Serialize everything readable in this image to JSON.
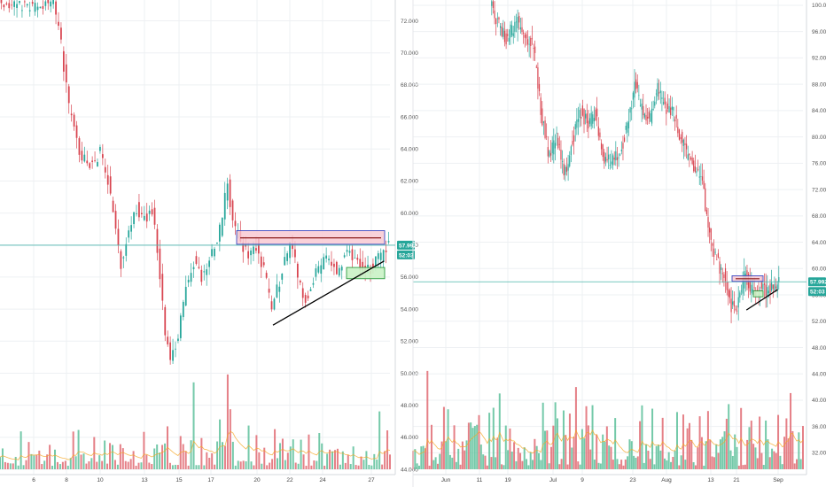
{
  "colors": {
    "up": "#26a69a",
    "down": "#d8444f",
    "up_vol": "#5cbf9a",
    "down_vol": "#e06a72",
    "grid": "#eef0f3",
    "current_line": "#4db6ac",
    "resistance_fill": "#f7c6cf",
    "resistance_border": "#3b49c4",
    "support_fill": "#c9f2c5",
    "support_border": "#2e9c42",
    "trend_line": "#000000",
    "ma_line": "#f5a623"
  },
  "chart_data": [
    {
      "type": "candlestick",
      "title": "",
      "x_ticks": [
        "6",
        "8",
        "10",
        "13",
        "15",
        "17",
        "20",
        "22",
        "24",
        "27"
      ],
      "y_ticks": [
        "72.000",
        "70.000",
        "68.000",
        "66.000",
        "64.000",
        "62.000",
        "60.000",
        "58.000",
        "56.000",
        "54.000",
        "52.000",
        "50.000",
        "48.000",
        "46.000",
        "44.000"
      ],
      "volume_ticks": [
        "48.000",
        "46.000",
        "44.000"
      ],
      "ylim": [
        44,
        73.3
      ],
      "grid": true,
      "price_badges": [
        {
          "text": "57.992",
          "value": 57.992,
          "color": "#26a69a"
        },
        {
          "text": "52:03",
          "value": 56.9,
          "color": "#26a69a"
        }
      ],
      "price_path": [
        {
          "t": 0,
          "v": 73.2
        },
        {
          "t": 0.05,
          "v": 73.0
        },
        {
          "t": 0.1,
          "v": 72.9
        },
        {
          "t": 0.14,
          "v": 73.2
        },
        {
          "t": 0.16,
          "v": 70.5
        },
        {
          "t": 0.18,
          "v": 66.5
        },
        {
          "t": 0.21,
          "v": 63.6
        },
        {
          "t": 0.24,
          "v": 63.0
        },
        {
          "t": 0.26,
          "v": 63.8
        },
        {
          "t": 0.28,
          "v": 62.0
        },
        {
          "t": 0.3,
          "v": 58.8
        },
        {
          "t": 0.315,
          "v": 56.6
        },
        {
          "t": 0.33,
          "v": 58.8
        },
        {
          "t": 0.35,
          "v": 60.5
        },
        {
          "t": 0.37,
          "v": 59.5
        },
        {
          "t": 0.395,
          "v": 60.2
        },
        {
          "t": 0.41,
          "v": 57.2
        },
        {
          "t": 0.425,
          "v": 52.6
        },
        {
          "t": 0.44,
          "v": 50.8
        },
        {
          "t": 0.46,
          "v": 52.2
        },
        {
          "t": 0.48,
          "v": 55.3
        },
        {
          "t": 0.5,
          "v": 57.0
        },
        {
          "t": 0.52,
          "v": 56.0
        },
        {
          "t": 0.55,
          "v": 57.8
        },
        {
          "t": 0.57,
          "v": 59.2
        },
        {
          "t": 0.585,
          "v": 62.0
        },
        {
          "t": 0.6,
          "v": 59.3
        },
        {
          "t": 0.62,
          "v": 58.2
        },
        {
          "t": 0.64,
          "v": 57.3
        },
        {
          "t": 0.66,
          "v": 58.0
        },
        {
          "t": 0.68,
          "v": 56.5
        },
        {
          "t": 0.7,
          "v": 54.0
        },
        {
          "t": 0.72,
          "v": 55.8
        },
        {
          "t": 0.75,
          "v": 58.3
        },
        {
          "t": 0.77,
          "v": 55.5
        },
        {
          "t": 0.79,
          "v": 54.6
        },
        {
          "t": 0.81,
          "v": 56.0
        },
        {
          "t": 0.84,
          "v": 57.3
        },
        {
          "t": 0.87,
          "v": 56.3
        },
        {
          "t": 0.89,
          "v": 57.8
        },
        {
          "t": 0.92,
          "v": 56.8
        },
        {
          "t": 0.95,
          "v": 56.5
        },
        {
          "t": 0.97,
          "v": 57.0
        },
        {
          "t": 1.0,
          "v": 57.99
        }
      ],
      "horizontal_line": 57.99,
      "resistance_box": {
        "v_top": 58.9,
        "v_bottom": 58.05,
        "mid": 58.45
      },
      "support_box": {
        "v_top": 56.6,
        "v_bottom": 55.9
      },
      "trend_line": {
        "from": {
          "t": 0.7,
          "v": 53.0
        },
        "to": {
          "t": 0.985,
          "v": 57.0
        }
      }
    },
    {
      "type": "candlestick",
      "title": "",
      "x_ticks": [
        "Jun",
        "11",
        "19",
        "Jul",
        "9",
        "23",
        "Aug",
        "13",
        "21",
        "Sep"
      ],
      "y_ticks": [
        "100.000",
        "96.000",
        "92.000",
        "88.000",
        "84.000",
        "80.000",
        "76.000",
        "72.000",
        "68.000",
        "64.000",
        "60.000",
        "56.000",
        "52.000",
        "48.000",
        "44.000",
        "40.000",
        "36.000",
        "32.000"
      ],
      "volume_ticks": [
        "48.000",
        "44.000",
        "40.000",
        "36.000",
        "32.000"
      ],
      "ylim": [
        29.5,
        100.8
      ],
      "grid": true,
      "price_badges": [
        {
          "text": "57.992",
          "value": 57.992,
          "color": "#26a69a"
        },
        {
          "text": "52:03",
          "value": 55.9,
          "color": "#26a69a"
        }
      ],
      "price_path": [
        {
          "t": 0.2,
          "v": 100.5
        },
        {
          "t": 0.22,
          "v": 97.0
        },
        {
          "t": 0.24,
          "v": 95.0
        },
        {
          "t": 0.27,
          "v": 97.5
        },
        {
          "t": 0.29,
          "v": 95.5
        },
        {
          "t": 0.31,
          "v": 94.0
        },
        {
          "t": 0.33,
          "v": 84.0
        },
        {
          "t": 0.35,
          "v": 77.0
        },
        {
          "t": 0.37,
          "v": 80.0
        },
        {
          "t": 0.39,
          "v": 74.0
        },
        {
          "t": 0.41,
          "v": 79.0
        },
        {
          "t": 0.43,
          "v": 84.0
        },
        {
          "t": 0.45,
          "v": 82.0
        },
        {
          "t": 0.47,
          "v": 83.5
        },
        {
          "t": 0.49,
          "v": 77.0
        },
        {
          "t": 0.51,
          "v": 76.0
        },
        {
          "t": 0.53,
          "v": 77.5
        },
        {
          "t": 0.55,
          "v": 81.0
        },
        {
          "t": 0.57,
          "v": 88.0
        },
        {
          "t": 0.59,
          "v": 84.0
        },
        {
          "t": 0.61,
          "v": 82.5
        },
        {
          "t": 0.63,
          "v": 87.5
        },
        {
          "t": 0.65,
          "v": 84.5
        },
        {
          "t": 0.67,
          "v": 83.5
        },
        {
          "t": 0.69,
          "v": 79.5
        },
        {
          "t": 0.71,
          "v": 76.5
        },
        {
          "t": 0.73,
          "v": 74.5
        },
        {
          "t": 0.745,
          "v": 72.5
        },
        {
          "t": 0.76,
          "v": 66.0
        },
        {
          "t": 0.775,
          "v": 62.5
        },
        {
          "t": 0.79,
          "v": 60.0
        },
        {
          "t": 0.805,
          "v": 58.5
        },
        {
          "t": 0.815,
          "v": 54.5
        },
        {
          "t": 0.83,
          "v": 53.5
        },
        {
          "t": 0.845,
          "v": 57.5
        },
        {
          "t": 0.855,
          "v": 59.5
        },
        {
          "t": 0.865,
          "v": 56.8
        },
        {
          "t": 0.88,
          "v": 56.0
        },
        {
          "t": 0.895,
          "v": 57.3
        },
        {
          "t": 0.91,
          "v": 56.5
        },
        {
          "t": 0.925,
          "v": 57.3
        },
        {
          "t": 0.94,
          "v": 57.99
        }
      ],
      "horizontal_line": 57.99,
      "resistance_box": {
        "v_top": 58.9,
        "v_bottom": 58.05,
        "mid": 58.45
      },
      "support_box": {
        "v_top": 56.6,
        "v_bottom": 55.7
      },
      "trend_line": {
        "from": {
          "t": 0.855,
          "v": 53.7
        },
        "to": {
          "t": 0.935,
          "v": 56.8
        }
      }
    }
  ]
}
